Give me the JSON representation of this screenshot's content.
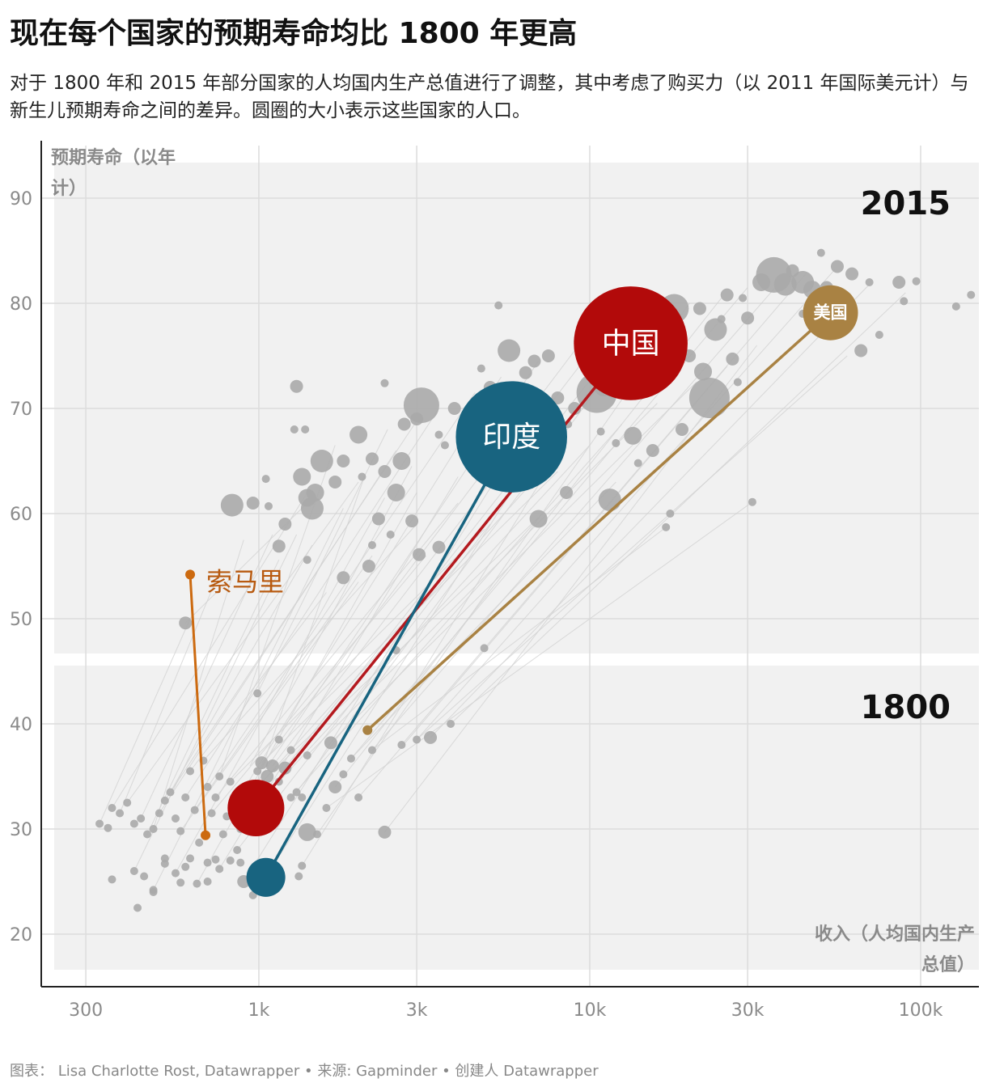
{
  "title": "现在每个国家的预期寿命均比 1800 年更高",
  "subtitle": "对于 1800 年和 2015 年部分国家的人均国内生产总值进行了调整，其中考虑了购买力（以 2011 年国际美元计）与新生儿预期寿命之间的差异。圆圈的大小表示这些国家的人口。",
  "footer": "图表： Lisa Charlotte Rost, Datawrapper • 来源: Gapminder • 创建人 Datawrapper",
  "colors": {
    "china": "#b20a0a",
    "china_line": "#b41a1f",
    "india": "#186480",
    "usa": "#a98243",
    "somalia": "#cc6a10",
    "grey_dot": "#aaaaaa",
    "grey_line": "#d2d2d2",
    "panel": "#f1f1f1"
  },
  "chart_data": {
    "type": "scatter",
    "x_scale": "log",
    "xlabel": "收入（人均国内生产总值）",
    "ylabel": "预期寿命（以年计）",
    "xlim": [
      220,
      150000
    ],
    "ylim": [
      15,
      95
    ],
    "x_ticks": [
      300,
      1000,
      3000,
      10000,
      30000,
      100000
    ],
    "x_tick_labels": [
      "300",
      "1k",
      "3k",
      "10k",
      "30k",
      "100k"
    ],
    "y_ticks": [
      20,
      30,
      40,
      50,
      60,
      70,
      80,
      90
    ],
    "y_tick_labels": [
      "20",
      "30",
      "40",
      "50",
      "60",
      "70",
      "80",
      "90"
    ],
    "panel_labels": {
      "top": "2015",
      "bottom": "1800"
    },
    "highlighted": [
      {
        "name": "中国",
        "key": "china",
        "pop_1800": 340,
        "pop_2015": 1370,
        "p1800": {
          "gdp": 980,
          "life": 32.0
        },
        "p2015": {
          "gdp": 13300,
          "life": 76.2
        }
      },
      {
        "name": "印度",
        "key": "india",
        "pop_1800": 160,
        "pop_2015": 1310,
        "p1800": {
          "gdp": 1050,
          "life": 25.4
        },
        "p2015": {
          "gdp": 5800,
          "life": 67.3
        }
      },
      {
        "name": "美国",
        "key": "usa",
        "pop_1800": 6,
        "pop_2015": 320,
        "p1800": {
          "gdp": 2130,
          "life": 39.4
        },
        "p2015": {
          "gdp": 53400,
          "life": 79.1
        }
      },
      {
        "name": "索马里",
        "key": "somalia",
        "pop_1800": 1,
        "pop_2015": 1,
        "p1800": {
          "gdp": 690,
          "life": 29.4
        },
        "p2015": {
          "gdp": 620,
          "life": 54.2
        }
      }
    ],
    "others_2015": [
      [
        36000,
        82.7,
        8
      ],
      [
        39000,
        81.8,
        5
      ],
      [
        44000,
        82.0,
        5
      ],
      [
        47000,
        81.3,
        4
      ],
      [
        41000,
        83.1,
        3
      ],
      [
        52000,
        81.5,
        3
      ],
      [
        33000,
        82.0,
        4
      ],
      [
        18000,
        79.5,
        6
      ],
      [
        16500,
        77.3,
        4
      ],
      [
        24000,
        77.5,
        5
      ],
      [
        23000,
        71.0,
        9
      ],
      [
        22000,
        73.5,
        4
      ],
      [
        20000,
        75.0,
        3
      ],
      [
        14500,
        78.5,
        3
      ],
      [
        10500,
        71.5,
        10
      ],
      [
        12500,
        74.5,
        4
      ],
      [
        11000,
        72.0,
        4
      ],
      [
        9000,
        70.0,
        3
      ],
      [
        8000,
        71.0,
        3
      ],
      [
        7500,
        75.0,
        3
      ],
      [
        6800,
        74.5,
        3
      ],
      [
        5700,
        75.5,
        5
      ],
      [
        5000,
        72.0,
        3
      ],
      [
        4700,
        73.8,
        2
      ],
      [
        3900,
        70.0,
        3
      ],
      [
        3500,
        67.5,
        2
      ],
      [
        3100,
        70.3,
        8
      ],
      [
        3000,
        69.0,
        3
      ],
      [
        2700,
        65.0,
        4
      ],
      [
        2600,
        62.0,
        4
      ],
      [
        2400,
        64.0,
        3
      ],
      [
        2200,
        65.2,
        3
      ],
      [
        2000,
        67.5,
        4
      ],
      [
        1800,
        65.0,
        3
      ],
      [
        1700,
        63.0,
        3
      ],
      [
        1550,
        65.0,
        5
      ],
      [
        1480,
        62.0,
        4
      ],
      [
        1450,
        60.5,
        5
      ],
      [
        1400,
        61.5,
        4
      ],
      [
        1350,
        63.5,
        4
      ],
      [
        1200,
        59.0,
        3
      ],
      [
        1150,
        56.9,
        3
      ],
      [
        1280,
        68.0,
        2
      ],
      [
        1380,
        68.0,
        2
      ],
      [
        1300,
        72.1,
        3
      ],
      [
        960,
        61.0,
        3
      ],
      [
        830,
        60.8,
        5
      ],
      [
        1050,
        63.3,
        2
      ],
      [
        1070,
        60.7,
        2
      ],
      [
        2300,
        59.5,
        3
      ],
      [
        2900,
        59.3,
        3
      ],
      [
        3500,
        56.8,
        3
      ],
      [
        3050,
        56.1,
        3
      ],
      [
        1800,
        53.9,
        3
      ],
      [
        2200,
        57.0,
        2
      ],
      [
        1400,
        55.6,
        2
      ],
      [
        2400,
        72.4,
        2
      ],
      [
        2750,
        68.5,
        3
      ],
      [
        2150,
        55.0,
        3
      ],
      [
        2050,
        63.5,
        2
      ],
      [
        4800,
        47.2,
        2
      ],
      [
        2600,
        47.0,
        2
      ],
      [
        2500,
        58.0,
        2
      ],
      [
        7000,
        59.5,
        4
      ],
      [
        8500,
        62.0,
        3
      ],
      [
        11500,
        61.3,
        5
      ],
      [
        13500,
        67.4,
        4
      ],
      [
        15500,
        66.0,
        3
      ],
      [
        19000,
        68.0,
        3
      ],
      [
        17000,
        58.7,
        2
      ],
      [
        28000,
        72.5,
        2
      ],
      [
        27000,
        74.7,
        3
      ],
      [
        30000,
        78.6,
        3
      ],
      [
        29000,
        80.5,
        2
      ],
      [
        26000,
        80.8,
        3
      ],
      [
        25000,
        78.5,
        2
      ],
      [
        21500,
        79.5,
        3
      ],
      [
        44000,
        79.0,
        2
      ],
      [
        47000,
        80.0,
        2
      ],
      [
        56000,
        83.5,
        3
      ],
      [
        62000,
        82.8,
        3
      ],
      [
        70000,
        82.0,
        2
      ],
      [
        58000,
        80.0,
        2
      ],
      [
        66000,
        75.5,
        3
      ],
      [
        75000,
        77.0,
        2
      ],
      [
        86000,
        82.0,
        3
      ],
      [
        89000,
        80.2,
        2
      ],
      [
        97000,
        82.1,
        2
      ],
      [
        128000,
        79.7,
        2
      ],
      [
        142000,
        80.8,
        2
      ],
      [
        50000,
        84.8,
        2
      ],
      [
        31000,
        61.1,
        2
      ],
      [
        6400,
        73.4,
        3
      ],
      [
        5300,
        79.8,
        2
      ],
      [
        8600,
        68.5,
        2
      ],
      [
        9200,
        76.4,
        2
      ],
      [
        4300,
        68.2,
        2
      ],
      [
        3650,
        66.5,
        2
      ],
      [
        17500,
        60.0,
        2
      ],
      [
        14000,
        64.8,
        2
      ],
      [
        12000,
        66.7,
        2
      ],
      [
        10800,
        67.8,
        2
      ]
    ],
    "others_1800": [
      [
        350,
        30.1,
        2
      ],
      [
        330,
        30.5,
        2
      ],
      [
        360,
        32.0,
        2
      ],
      [
        380,
        31.5,
        2
      ],
      [
        400,
        32.5,
        2
      ],
      [
        420,
        30.5,
        2
      ],
      [
        440,
        31.0,
        2
      ],
      [
        460,
        29.5,
        2
      ],
      [
        480,
        30.0,
        2
      ],
      [
        500,
        31.5,
        2
      ],
      [
        520,
        32.7,
        2
      ],
      [
        540,
        33.5,
        2
      ],
      [
        560,
        31.0,
        2
      ],
      [
        580,
        29.8,
        2
      ],
      [
        600,
        33.0,
        2
      ],
      [
        620,
        35.5,
        2
      ],
      [
        640,
        31.8,
        2
      ],
      [
        660,
        28.7,
        2
      ],
      [
        680,
        36.5,
        2
      ],
      [
        700,
        34.0,
        2
      ],
      [
        720,
        31.5,
        2
      ],
      [
        740,
        33.0,
        2
      ],
      [
        760,
        35.0,
        2
      ],
      [
        780,
        29.5,
        2
      ],
      [
        800,
        31.2,
        2
      ],
      [
        820,
        34.5,
        2
      ],
      [
        840,
        33.0,
        2
      ],
      [
        860,
        28.0,
        2
      ],
      [
        880,
        30.0,
        2
      ],
      [
        900,
        32.5,
        2
      ],
      [
        930,
        34.0,
        2
      ],
      [
        960,
        33.5,
        2
      ],
      [
        990,
        35.5,
        2
      ],
      [
        1020,
        36.3,
        3
      ],
      [
        1060,
        35.0,
        3
      ],
      [
        1100,
        36.0,
        3
      ],
      [
        1150,
        34.5,
        2
      ],
      [
        1200,
        35.8,
        3
      ],
      [
        1250,
        33.0,
        2
      ],
      [
        1300,
        33.5,
        2
      ],
      [
        1350,
        33.0,
        2
      ],
      [
        1400,
        29.7,
        4
      ],
      [
        1500,
        29.5,
        2
      ],
      [
        1600,
        32.0,
        2
      ],
      [
        1700,
        34.0,
        3
      ],
      [
        1800,
        35.2,
        2
      ],
      [
        1900,
        36.7,
        2
      ],
      [
        2000,
        33.0,
        2
      ],
      [
        2200,
        37.5,
        2
      ],
      [
        2400,
        29.7,
        3
      ],
      [
        2700,
        38.0,
        2
      ],
      [
        3000,
        38.5,
        2
      ],
      [
        3300,
        38.7,
        3
      ],
      [
        3800,
        40.0,
        2
      ],
      [
        1650,
        38.2,
        3
      ],
      [
        1400,
        37.0,
        2
      ],
      [
        1250,
        37.5,
        2
      ],
      [
        1150,
        38.5,
        2
      ],
      [
        990,
        42.9,
        2
      ],
      [
        600,
        49.6,
        3
      ],
      [
        420,
        26.0,
        2
      ],
      [
        450,
        25.5,
        2
      ],
      [
        480,
        24.2,
        2
      ],
      [
        520,
        27.2,
        2
      ],
      [
        560,
        25.8,
        2
      ],
      [
        600,
        26.4,
        2
      ],
      [
        650,
        24.8,
        2
      ],
      [
        700,
        25.0,
        2
      ],
      [
        760,
        26.2,
        2
      ],
      [
        820,
        27.0,
        2
      ],
      [
        900,
        25.0,
        3
      ],
      [
        960,
        23.7,
        2
      ],
      [
        880,
        26.8,
        2
      ],
      [
        1000,
        24.4,
        2
      ],
      [
        1320,
        25.5,
        2
      ],
      [
        1350,
        26.5,
        2
      ],
      [
        360,
        25.2,
        2
      ],
      [
        430,
        22.5,
        2
      ],
      [
        480,
        24.0,
        2
      ],
      [
        520,
        26.7,
        2
      ],
      [
        580,
        24.9,
        2
      ],
      [
        620,
        27.2,
        2
      ],
      [
        700,
        26.8,
        2
      ],
      [
        740,
        27.1,
        2
      ]
    ],
    "lines_extra": [
      [
        [
          360,
          32.0
        ],
        [
          1400,
          62.0
        ]
      ],
      [
        [
          400,
          32.5
        ],
        [
          2000,
          63.0
        ]
      ],
      [
        [
          500,
          31.5
        ],
        [
          2600,
          66.0
        ]
      ],
      [
        [
          520,
          32.7
        ],
        [
          3100,
          69.5
        ]
      ],
      [
        [
          600,
          33.0
        ],
        [
          3500,
          70.0
        ]
      ],
      [
        [
          700,
          34.0
        ],
        [
          4500,
          71.5
        ]
      ],
      [
        [
          800,
          31.2
        ],
        [
          5400,
          73.0
        ]
      ],
      [
        [
          900,
          32.5
        ],
        [
          7000,
          74.5
        ]
      ],
      [
        [
          990,
          35.5
        ],
        [
          9000,
          75.5
        ]
      ],
      [
        [
          1100,
          36.0
        ],
        [
          11000,
          77.0
        ]
      ],
      [
        [
          1200,
          35.8
        ],
        [
          14000,
          78.5
        ]
      ],
      [
        [
          1300,
          33.5
        ],
        [
          16000,
          79.5
        ]
      ],
      [
        [
          1500,
          29.5
        ],
        [
          20000,
          80.0
        ]
      ],
      [
        [
          1700,
          34.0
        ],
        [
          25000,
          80.5
        ]
      ],
      [
        [
          1900,
          36.7
        ],
        [
          30000,
          81.5
        ]
      ],
      [
        [
          2200,
          37.5
        ],
        [
          38000,
          82.2
        ]
      ],
      [
        [
          2700,
          38.0
        ],
        [
          45000,
          82.8
        ]
      ],
      [
        [
          3000,
          38.5
        ],
        [
          55000,
          83.2
        ]
      ],
      [
        [
          3300,
          38.7
        ],
        [
          70000,
          81.8
        ]
      ],
      [
        [
          3800,
          40.0
        ],
        [
          90000,
          81.0
        ]
      ],
      [
        [
          420,
          26.0
        ],
        [
          1300,
          58.0
        ]
      ],
      [
        [
          480,
          24.2
        ],
        [
          1800,
          60.5
        ]
      ],
      [
        [
          560,
          25.8
        ],
        [
          2400,
          61.5
        ]
      ],
      [
        [
          650,
          24.8
        ],
        [
          3000,
          62.0
        ]
      ],
      [
        [
          760,
          26.2
        ],
        [
          4000,
          63.5
        ]
      ],
      [
        [
          900,
          25.0
        ],
        [
          5500,
          64.5
        ]
      ],
      [
        [
          1000,
          24.4
        ],
        [
          6800,
          65.5
        ]
      ],
      [
        [
          1350,
          26.5
        ],
        [
          8500,
          67.0
        ]
      ],
      [
        [
          480,
          30.0
        ],
        [
          900,
          57.5
        ]
      ],
      [
        [
          460,
          29.5
        ],
        [
          1150,
          55.6
        ]
      ],
      [
        [
          620,
          35.5
        ],
        [
          1600,
          52.5
        ]
      ],
      [
        [
          640,
          31.8
        ],
        [
          2200,
          56.0
        ]
      ],
      [
        [
          680,
          36.5
        ],
        [
          3000,
          59.0
        ]
      ],
      [
        [
          740,
          33.0
        ],
        [
          4000,
          61.0
        ]
      ],
      [
        [
          860,
          28.0
        ],
        [
          5000,
          59.0
        ]
      ],
      [
        [
          960,
          33.5
        ],
        [
          6500,
          62.5
        ]
      ],
      [
        [
          1020,
          36.3
        ],
        [
          8000,
          64.0
        ]
      ],
      [
        [
          1150,
          34.5
        ],
        [
          10000,
          66.5
        ]
      ],
      [
        [
          1250,
          33.0
        ],
        [
          12500,
          68.5
        ]
      ],
      [
        [
          1400,
          37.0
        ],
        [
          16000,
          70.5
        ]
      ],
      [
        [
          1650,
          38.2
        ],
        [
          21000,
          72.5
        ]
      ],
      [
        [
          2000,
          33.0
        ],
        [
          26000,
          74.0
        ]
      ],
      [
        [
          2400,
          29.7
        ],
        [
          32000,
          76.0
        ]
      ],
      [
        [
          330,
          30.5
        ],
        [
          620,
          50.0
        ]
      ],
      [
        [
          380,
          31.5
        ],
        [
          760,
          54.5
        ]
      ],
      [
        [
          440,
          31.0
        ],
        [
          1100,
          58.0
        ]
      ],
      [
        [
          540,
          33.5
        ],
        [
          1450,
          57.0
        ]
      ],
      [
        [
          580,
          29.8
        ],
        [
          2000,
          53.5
        ]
      ],
      [
        [
          720,
          31.5
        ],
        [
          3200,
          56.0
        ]
      ],
      [
        [
          820,
          34.5
        ],
        [
          4800,
          58.5
        ]
      ],
      [
        [
          1060,
          35.0
        ],
        [
          7200,
          60.0
        ]
      ],
      [
        [
          1900,
          36.7
        ],
        [
          12000,
          63.0
        ]
      ],
      [
        [
          2200,
          37.5
        ],
        [
          17000,
          58.7
        ]
      ],
      [
        [
          1600,
          32.0
        ],
        [
          31000,
          61.1
        ]
      ],
      [
        [
          3000,
          38.5
        ],
        [
          60000,
          75.0
        ]
      ],
      [
        [
          880,
          30.0
        ],
        [
          2100,
          63.8
        ]
      ],
      [
        [
          760,
          35.0
        ],
        [
          1700,
          66.5
        ]
      ],
      [
        [
          940,
          36.0
        ],
        [
          2900,
          64.5
        ]
      ],
      [
        [
          990,
          42.9
        ],
        [
          2450,
          68.0
        ]
      ],
      [
        [
          600,
          49.6
        ],
        [
          1400,
          61.0
        ]
      ]
    ]
  }
}
